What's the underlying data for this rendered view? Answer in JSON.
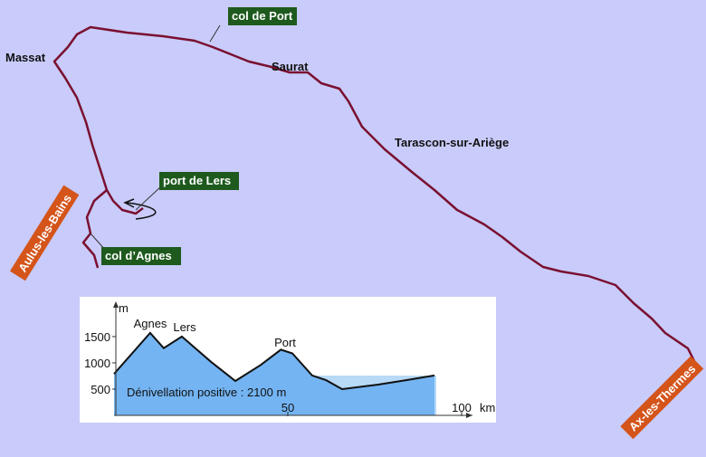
{
  "map": {
    "places": [
      "col de Port",
      "Massat",
      "Saurat",
      "Tarascon-sur-Ariège",
      "port de Lers",
      "Aulus-les-Bains",
      "col d’Agnes",
      "Ax-les-Thermes"
    ]
  },
  "chart_data": {
    "type": "area",
    "y_unit": "m",
    "x_unit": "km",
    "x": [
      0,
      10.4,
      14.3,
      19.5,
      27.9,
      34.9,
      42.2,
      48,
      51.3,
      57,
      61,
      65.6,
      76,
      84,
      92.2
    ],
    "values": [
      790,
      1570,
      1280,
      1500,
      1020,
      655,
      960,
      1250,
      1180,
      760,
      670,
      500,
      585,
      670,
      760
    ],
    "color": "#74b4f2",
    "xlim": [
      0,
      100
    ],
    "ylim": [
      0,
      2050
    ],
    "xticks": [
      50,
      100
    ],
    "yticks": [
      500,
      1000,
      1500
    ],
    "annotations": [
      "Agnes",
      "Lers",
      "Port"
    ],
    "note": "Dénivellation positive : 2100 m"
  }
}
